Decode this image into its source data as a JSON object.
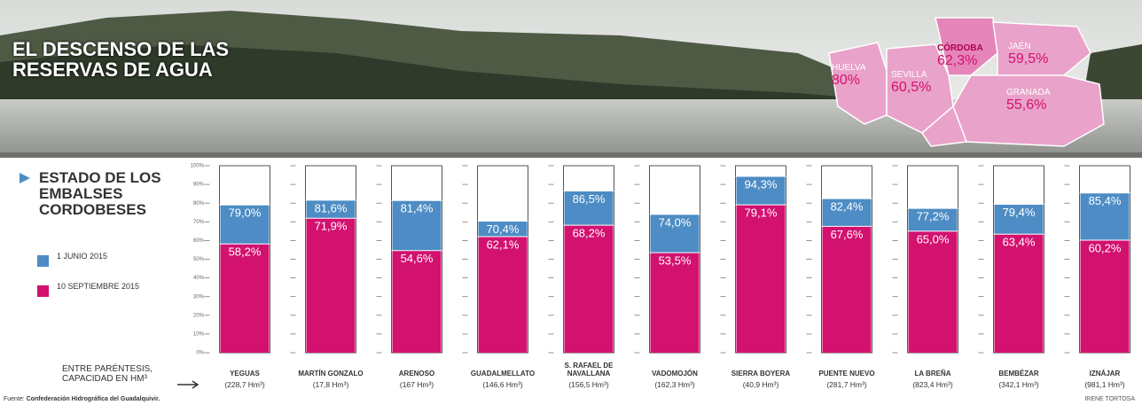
{
  "title": "EL DESCENSO DE LAS RESERVAS DE AGUA",
  "map": {
    "regions": [
      {
        "name": "HUELVA",
        "label": "80%"
      },
      {
        "name": "SEVILLA",
        "label": "60,5%"
      },
      {
        "name": "CÓRDOBA",
        "label": "62,3%"
      },
      {
        "name": "JAÉN",
        "label": "59,5%"
      },
      {
        "name": "GRANADA",
        "label": "55,6%"
      }
    ]
  },
  "chart_data": {
    "type": "bar",
    "title": "ESTADO DE LOS EMBALSES CORDOBESES",
    "categories": [
      "YEGUAS",
      "MARTÍN GONZALO",
      "ARENOSO",
      "GUADALMELLATO",
      "S. RAFAEL DE NAVALLANA",
      "VADOMOJÓN",
      "SIERRA BOYERA",
      "PUENTE NUEVO",
      "LA BREÑA",
      "BEMBÉZAR",
      "IZNÁJAR"
    ],
    "capacities": [
      "(228,7 Hm³)",
      "(17,8 Hm³)",
      "(167 Hm³)",
      "(146,6 Hm³)",
      "(156,5 Hm³)",
      "(162,3 Hm³)",
      "(40,9 Hm³)",
      "(281,7 Hm³)",
      "(823,4 Hm³)",
      "(342,1 Hm³)",
      "(981,1 Hm³)"
    ],
    "capacity_note": "ENTRE PARÉNTESIS, CAPACIDAD EN HM³",
    "series": [
      {
        "name": "1 JUNIO 2015",
        "color": "#4d8cc4",
        "values": [
          79.0,
          81.6,
          81.4,
          70.4,
          86.5,
          74.0,
          94.3,
          82.4,
          77.2,
          79.4,
          85.4
        ],
        "value_labels": [
          "79,0%",
          "81,6%",
          "81,4%",
          "70,4%",
          "86,5%",
          "74,0%",
          "94,3%",
          "82,4%",
          "77,2%",
          "79,4%",
          "85,4%"
        ]
      },
      {
        "name": "10 SEPTIEMBRE 2015",
        "color": "#d3116f",
        "values": [
          58.2,
          71.9,
          54.6,
          62.1,
          68.2,
          53.5,
          79.1,
          67.6,
          65.0,
          63.4,
          60.2
        ],
        "value_labels": [
          "58,2%",
          "71,9%",
          "54,6%",
          "62,1%",
          "68,2%",
          "53,5%",
          "79,1%",
          "67,6%",
          "65,0%",
          "63,4%",
          "60,2%"
        ]
      }
    ],
    "ylim": [
      0,
      100
    ],
    "yticks": [
      {
        "value": 0,
        "label": "0%"
      },
      {
        "value": 10,
        "label": "10%"
      },
      {
        "value": 20,
        "label": "20%"
      },
      {
        "value": 30,
        "label": "30%"
      },
      {
        "value": 40,
        "label": "40%"
      },
      {
        "value": 50,
        "label": "50%"
      },
      {
        "value": 60,
        "label": "60%"
      },
      {
        "value": 70,
        "label": "70%"
      },
      {
        "value": 80,
        "label": "80%"
      },
      {
        "value": 90,
        "label": "90%"
      },
      {
        "value": 100,
        "label": "100%"
      }
    ],
    "grid": true
  },
  "footer": {
    "source_label": "Fuente:",
    "source": "Confederación Hidrográfica del Guadalquivir.",
    "author": "IRENE TORTOSA"
  }
}
